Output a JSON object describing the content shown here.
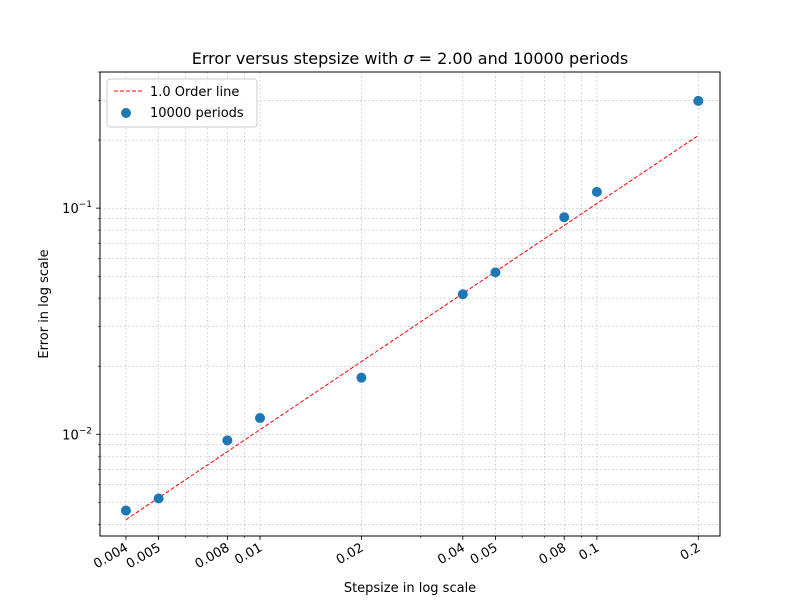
{
  "chart_data": {
    "type": "scatter",
    "title_prefix": "Error versus stepsize with ",
    "title_sigma": "σ",
    "title_eq": " = 2.00 and 10000 periods",
    "xlabel": "Stepsize in log scale",
    "ylabel": "Error in log scale",
    "x_scale": "log",
    "y_scale": "log",
    "xlim": [
      0.00335,
      0.232
    ],
    "ylim": [
      0.00355,
      0.4
    ],
    "grid": true,
    "legend_placement": "upper-left",
    "x_ticks": [
      {
        "value": 0.004,
        "label": "0.004"
      },
      {
        "value": 0.005,
        "label": "0.005"
      },
      {
        "value": 0.008,
        "label": "0.008"
      },
      {
        "value": 0.01,
        "label": "0.01"
      },
      {
        "value": 0.02,
        "label": "0.02"
      },
      {
        "value": 0.04,
        "label": "0.04"
      },
      {
        "value": 0.05,
        "label": "0.05"
      },
      {
        "value": 0.08,
        "label": "0.08"
      },
      {
        "value": 0.1,
        "label": "0.1"
      },
      {
        "value": 0.2,
        "label": "0.2"
      }
    ],
    "y_ticks": [
      {
        "value": 0.01,
        "base": "10",
        "exp": "−2"
      },
      {
        "value": 0.1,
        "base": "10",
        "exp": "−1"
      }
    ],
    "series": [
      {
        "name": "10000 periods",
        "kind": "scatter",
        "color": "#1f77b4",
        "x": [
          0.004,
          0.005,
          0.008,
          0.01,
          0.02,
          0.04,
          0.05,
          0.08,
          0.1,
          0.2
        ],
        "y": [
          0.0046,
          0.0052,
          0.0094,
          0.0118,
          0.0178,
          0.0416,
          0.052,
          0.0912,
          0.118,
          0.298
        ]
      },
      {
        "name": "1.0 Order line",
        "kind": "line",
        "color": "#ff0000",
        "dash": true,
        "x": [
          0.004,
          0.005,
          0.008,
          0.01,
          0.02,
          0.04,
          0.05,
          0.08,
          0.1,
          0.2
        ],
        "y": [
          0.00419,
          0.00524,
          0.00838,
          0.01048,
          0.02096,
          0.04192,
          0.0524,
          0.08384,
          0.1048,
          0.2096
        ]
      }
    ]
  }
}
